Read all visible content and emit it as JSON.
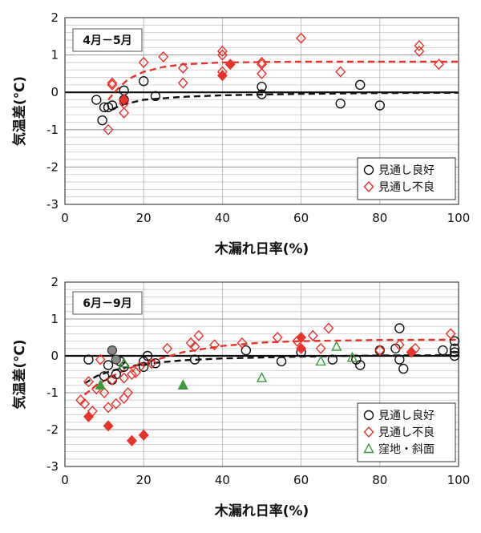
{
  "chart_data": [
    {
      "type": "scatter",
      "title": "4月－5月",
      "xlabel": "木漏れ日率(%)",
      "ylabel": "気温差(℃)",
      "xlim": [
        0,
        100
      ],
      "ylim": [
        -3,
        2
      ],
      "x_ticks": [
        "0",
        "20",
        "40",
        "60",
        "80",
        "100"
      ],
      "y_ticks": [
        "2",
        "1",
        "0",
        "-1",
        "-2",
        "-3"
      ],
      "grid": true,
      "legend_position": "bottom-right",
      "series": [
        {
          "name": "見通し良好",
          "marker": "circle-open",
          "color": "#111111",
          "points": [
            [
              8,
              -0.2
            ],
            [
              9.5,
              -0.75
            ],
            [
              10,
              -0.4
            ],
            [
              11,
              -0.4
            ],
            [
              12,
              -0.35
            ],
            [
              15,
              0.05
            ],
            [
              15,
              -0.2
            ],
            [
              20,
              0.3
            ],
            [
              23,
              -0.1
            ],
            [
              50,
              0.15
            ],
            [
              50,
              -0.05
            ],
            [
              70,
              -0.3
            ],
            [
              75,
              0.2
            ],
            [
              80,
              -0.35
            ]
          ]
        },
        {
          "name": "見通し不良",
          "marker": "diamond-open",
          "color": "#e8322c",
          "points": [
            [
              11,
              -1.0
            ],
            [
              12,
              0.25
            ],
            [
              12,
              0.2
            ],
            [
              15,
              -0.55
            ],
            [
              15,
              -0.3
            ],
            [
              20,
              0.8
            ],
            [
              25,
              0.95
            ],
            [
              30,
              0.65
            ],
            [
              30,
              0.25
            ],
            [
              40,
              1.1
            ],
            [
              40,
              1.0
            ],
            [
              40,
              0.55
            ],
            [
              50,
              0.8
            ],
            [
              50,
              0.75
            ],
            [
              50,
              0.5
            ],
            [
              60,
              1.45
            ],
            [
              70,
              0.55
            ],
            [
              90,
              1.25
            ],
            [
              90,
              1.1
            ],
            [
              95,
              0.75
            ]
          ]
        },
        {
          "name": "",
          "marker": "diamond-filled",
          "color": "#e8322c",
          "points": [
            [
              15,
              -0.2
            ],
            [
              40,
              0.45
            ],
            [
              42,
              0.75
            ]
          ]
        }
      ],
      "trend_lines": [
        {
          "color": "#111111",
          "style": "dashed",
          "points": [
            [
              12,
              -0.45
            ],
            [
              15,
              -0.32
            ],
            [
              20,
              -0.2
            ],
            [
              30,
              -0.12
            ],
            [
              40,
              -0.08
            ],
            [
              60,
              -0.04
            ],
            [
              80,
              -0.02
            ],
            [
              100,
              -0.01
            ]
          ]
        },
        {
          "color": "#e8322c",
          "style": "dashed",
          "points": [
            [
              11,
              -0.2
            ],
            [
              13,
              0.05
            ],
            [
              16,
              0.35
            ],
            [
              20,
              0.55
            ],
            [
              25,
              0.68
            ],
            [
              30,
              0.75
            ],
            [
              40,
              0.8
            ],
            [
              60,
              0.82
            ],
            [
              100,
              0.82
            ]
          ]
        }
      ]
    },
    {
      "type": "scatter",
      "title": "6月－9月",
      "xlabel": "木漏れ日率(%)",
      "ylabel": "気温差(℃)",
      "xlim": [
        0,
        100
      ],
      "ylim": [
        -3,
        2
      ],
      "x_ticks": [
        "0",
        "20",
        "40",
        "60",
        "80",
        "100"
      ],
      "y_ticks": [
        "2",
        "1",
        "0",
        "-1",
        "-2",
        "-3"
      ],
      "grid": true,
      "legend_position": "bottom-right",
      "series": [
        {
          "name": "見通し良好",
          "marker": "circle-open",
          "color": "#111111",
          "points": [
            [
              6,
              -0.1
            ],
            [
              10,
              -0.55
            ],
            [
              11,
              -0.25
            ],
            [
              12,
              -0.65
            ],
            [
              13,
              -0.5
            ],
            [
              14,
              -0.15
            ],
            [
              15,
              -0.3
            ],
            [
              20,
              -0.15
            ],
            [
              20,
              -0.3
            ],
            [
              21,
              0.0
            ],
            [
              23,
              -0.2
            ],
            [
              33,
              -0.1
            ],
            [
              46,
              0.15
            ],
            [
              55,
              -0.15
            ],
            [
              60,
              0.1
            ],
            [
              68,
              -0.1
            ],
            [
              74,
              -0.1
            ],
            [
              75,
              -0.25
            ],
            [
              80,
              0.15
            ],
            [
              84,
              0.2
            ],
            [
              85,
              0.75
            ],
            [
              85,
              -0.1
            ],
            [
              86,
              -0.35
            ],
            [
              96,
              0.15
            ],
            [
              99,
              0.4
            ],
            [
              99,
              0.2
            ],
            [
              99,
              0.1
            ],
            [
              99,
              0.0
            ]
          ]
        },
        {
          "name": "見通し不良",
          "marker": "diamond-open",
          "color": "#e8322c",
          "points": [
            [
              4,
              -1.2
            ],
            [
              5,
              -1.3
            ],
            [
              6,
              -0.7
            ],
            [
              7,
              -1.5
            ],
            [
              8,
              -0.9
            ],
            [
              9,
              -0.1
            ],
            [
              10,
              -1.0
            ],
            [
              11,
              -1.4
            ],
            [
              12,
              -0.65
            ],
            [
              13,
              -1.3
            ],
            [
              15,
              -1.15
            ],
            [
              15,
              -0.6
            ],
            [
              16,
              -1.0
            ],
            [
              17,
              -0.5
            ],
            [
              18,
              -0.45
            ],
            [
              19,
              -0.3
            ],
            [
              22,
              -0.2
            ],
            [
              26,
              0.2
            ],
            [
              32,
              0.35
            ],
            [
              33,
              0.25
            ],
            [
              34,
              0.55
            ],
            [
              38,
              0.3
            ],
            [
              45,
              0.35
            ],
            [
              54,
              0.5
            ],
            [
              59,
              0.4
            ],
            [
              63,
              0.55
            ],
            [
              65,
              0.2
            ],
            [
              67,
              0.75
            ],
            [
              80,
              0.15
            ],
            [
              85,
              0.3
            ],
            [
              88,
              0.1
            ],
            [
              89,
              0.2
            ],
            [
              98,
              0.6
            ]
          ]
        },
        {
          "name": "",
          "marker": "diamond-filled",
          "color": "#e8322c",
          "points": [
            [
              6,
              -1.65
            ],
            [
              11,
              -1.9
            ],
            [
              17,
              -2.3
            ],
            [
              20,
              -2.15
            ],
            [
              60,
              0.5
            ],
            [
              60,
              0.2
            ],
            [
              88,
              0.1
            ]
          ]
        },
        {
          "name": "",
          "marker": "circle-filled",
          "color": "#888888",
          "points": [
            [
              12,
              0.15
            ],
            [
              13,
              -0.1
            ]
          ]
        },
        {
          "name": "窪地・斜面",
          "marker": "triangle-open",
          "color": "#3a9a3a",
          "points": [
            [
              15,
              -0.2
            ],
            [
              50,
              -0.6
            ],
            [
              65,
              -0.15
            ],
            [
              69,
              0.25
            ],
            [
              73,
              -0.05
            ]
          ]
        },
        {
          "name": "",
          "marker": "triangle-filled",
          "color": "#3a9a3a",
          "points": [
            [
              9,
              -0.8
            ],
            [
              30,
              -0.8
            ]
          ]
        }
      ],
      "trend_lines": [
        {
          "color": "#111111",
          "style": "dashed",
          "points": [
            [
              5,
              -0.75
            ],
            [
              8,
              -0.55
            ],
            [
              12,
              -0.4
            ],
            [
              16,
              -0.3
            ],
            [
              20,
              -0.22
            ],
            [
              30,
              -0.12
            ],
            [
              40,
              -0.07
            ],
            [
              60,
              -0.02
            ],
            [
              80,
              0.01
            ],
            [
              100,
              0.02
            ]
          ]
        },
        {
          "color": "#e8322c",
          "style": "dashed",
          "points": [
            [
              5,
              -1.05
            ],
            [
              8,
              -0.8
            ],
            [
              12,
              -0.55
            ],
            [
              16,
              -0.35
            ],
            [
              20,
              -0.2
            ],
            [
              25,
              -0.05
            ],
            [
              30,
              0.1
            ],
            [
              40,
              0.27
            ],
            [
              50,
              0.36
            ],
            [
              60,
              0.4
            ],
            [
              80,
              0.43
            ],
            [
              100,
              0.44
            ]
          ]
        }
      ]
    }
  ]
}
